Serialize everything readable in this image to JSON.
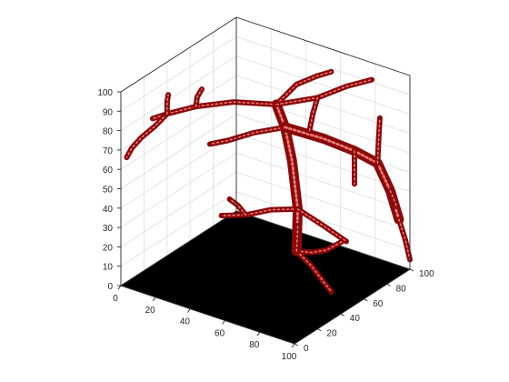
{
  "chart_data": {
    "type": "3d-surface",
    "title": "",
    "xlabel": "",
    "ylabel": "",
    "zlabel": "",
    "xlim": [
      0,
      100
    ],
    "ylim": [
      0,
      100
    ],
    "zlim": [
      0,
      100
    ],
    "x_ticks": [
      "0",
      "20",
      "40",
      "60",
      "80",
      "100"
    ],
    "y_ticks": [
      "0",
      "20",
      "40",
      "60",
      "80",
      "100"
    ],
    "z_ticks": [
      "0",
      "10",
      "20",
      "30",
      "40",
      "50",
      "60",
      "70",
      "80",
      "90",
      "100"
    ],
    "grid": true,
    "floor_color": "#000000",
    "surface_color": "#e8393a",
    "surface_shadow_color": "#8a0a0a",
    "branches": [
      {
        "points": [
          [
            60,
            62,
            12
          ],
          [
            62,
            60,
            35
          ],
          [
            60,
            58,
            60
          ],
          [
            58,
            55,
            78
          ],
          [
            55,
            52,
            90
          ]
        ],
        "thick": true
      },
      {
        "points": [
          [
            55,
            52,
            90
          ],
          [
            35,
            45,
            88
          ],
          [
            20,
            35,
            85
          ],
          [
            10,
            25,
            82
          ],
          [
            5,
            20,
            80
          ]
        ]
      },
      {
        "points": [
          [
            10,
            25,
            82
          ],
          [
            8,
            18,
            78
          ],
          [
            5,
            10,
            74
          ],
          [
            3,
            5,
            70
          ],
          [
            2,
            2,
            66
          ]
        ]
      },
      {
        "points": [
          [
            10,
            25,
            82
          ],
          [
            12,
            22,
            90
          ],
          [
            14,
            20,
            95
          ]
        ]
      },
      {
        "points": [
          [
            20,
            35,
            85
          ],
          [
            24,
            30,
            93
          ],
          [
            28,
            28,
            99
          ]
        ]
      },
      {
        "points": [
          [
            55,
            52,
            90
          ],
          [
            60,
            62,
            98
          ],
          [
            65,
            72,
            100
          ],
          [
            68,
            80,
            100
          ]
        ]
      },
      {
        "points": [
          [
            55,
            52,
            90
          ],
          [
            70,
            65,
            93
          ],
          [
            80,
            75,
            98
          ],
          [
            88,
            85,
            100
          ]
        ]
      },
      {
        "points": [
          [
            58,
            55,
            78
          ],
          [
            45,
            48,
            74
          ],
          [
            35,
            40,
            70
          ],
          [
            28,
            35,
            68
          ]
        ]
      },
      {
        "points": [
          [
            58,
            55,
            78
          ],
          [
            70,
            70,
            70
          ],
          [
            80,
            82,
            62
          ],
          [
            88,
            90,
            55
          ],
          [
            92,
            95,
            40
          ],
          [
            95,
            98,
            25
          ]
        ],
        "thick": true
      },
      {
        "points": [
          [
            88,
            90,
            55
          ],
          [
            86,
            94,
            65
          ],
          [
            84,
            98,
            74
          ]
        ]
      },
      {
        "points": [
          [
            92,
            95,
            40
          ],
          [
            96,
            92,
            38
          ],
          [
            99,
            90,
            36
          ]
        ]
      },
      {
        "points": [
          [
            95,
            98,
            25
          ],
          [
            98,
            99,
            15
          ],
          [
            100,
            100,
            5
          ]
        ]
      },
      {
        "points": [
          [
            62,
            60,
            35
          ],
          [
            50,
            55,
            33
          ],
          [
            40,
            48,
            30
          ],
          [
            30,
            42,
            29
          ]
        ]
      },
      {
        "points": [
          [
            40,
            48,
            30
          ],
          [
            38,
            44,
            36
          ],
          [
            36,
            40,
            40
          ]
        ]
      },
      {
        "points": [
          [
            62,
            60,
            35
          ],
          [
            72,
            68,
            26
          ],
          [
            80,
            75,
            18
          ]
        ]
      },
      {
        "points": [
          [
            60,
            62,
            12
          ],
          [
            62,
            72,
            8
          ],
          [
            64,
            82,
            6
          ],
          [
            66,
            92,
            7
          ]
        ]
      },
      {
        "points": [
          [
            60,
            62,
            12
          ],
          [
            70,
            60,
            8
          ],
          [
            80,
            55,
            5
          ],
          [
            88,
            50,
            4
          ]
        ]
      },
      {
        "points": [
          [
            60,
            62,
            12
          ],
          [
            55,
            70,
            14
          ],
          [
            50,
            78,
            16
          ]
        ]
      },
      {
        "points": [
          [
            70,
            65,
            93
          ],
          [
            72,
            58,
            88
          ],
          [
            74,
            52,
            82
          ]
        ]
      },
      {
        "points": [
          [
            80,
            82,
            62
          ],
          [
            84,
            76,
            58
          ],
          [
            88,
            70,
            52
          ]
        ]
      }
    ]
  }
}
